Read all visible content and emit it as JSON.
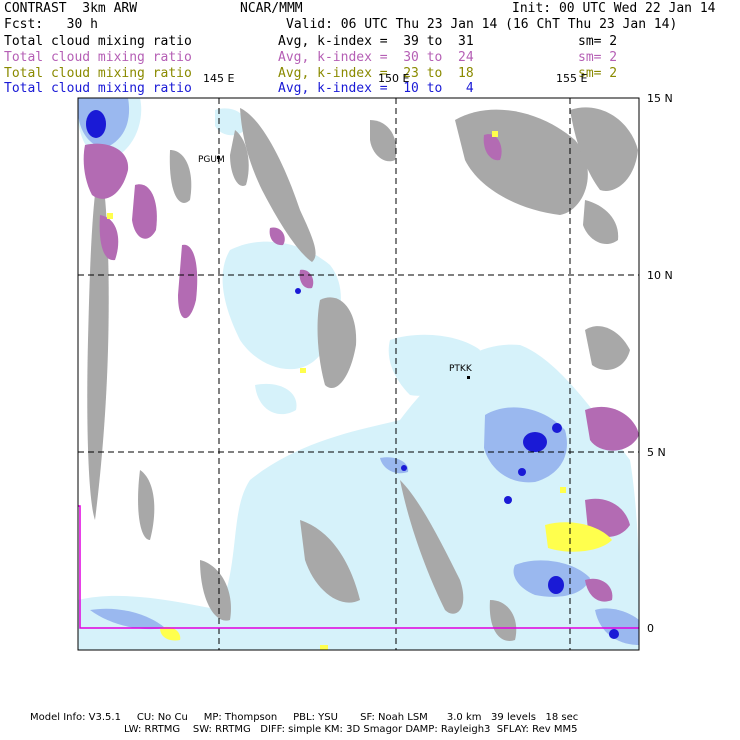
{
  "header": {
    "model": "CONTRAST  3km ARW",
    "org": "NCAR/MMM",
    "init": "Init: 00 UTC Wed 22 Jan 14",
    "fcst": "Fcst:   30 h",
    "valid": "Valid: 06 UTC Thu 23 Jan 14 (16 ChT Thu 23 Jan 14)"
  },
  "legend": [
    {
      "field": "Total cloud mixing ratio",
      "avg": "Avg, k-index =  39 to  31",
      "sm": "sm= 2",
      "color": "#000000"
    },
    {
      "field": "Total cloud mixing ratio",
      "avg": "Avg, k-index =  30 to  24",
      "sm": "sm= 2",
      "color": "#b55fb5"
    },
    {
      "field": "Total cloud mixing ratio",
      "avg": "Avg, k-index =  23 to  18",
      "sm": "sm= 2",
      "color": "#8a8a00"
    },
    {
      "field": "Total cloud mixing ratio",
      "avg": "Avg, k-index =  10 to   4",
      "sm": "",
      "color": "#1a1ad6"
    }
  ],
  "map": {
    "lon_labels": [
      "145 E",
      "150 E",
      "155 E"
    ],
    "lat_labels": [
      "15 N",
      "10 N",
      "5 N",
      "0"
    ],
    "stations": [
      "PGUM",
      "PTKK"
    ],
    "colors": {
      "land": "#a8a8a8",
      "purple_cloud": "#b36bb3",
      "light_blue": "#d6f2fa",
      "mid_blue": "#9ab8ef",
      "dark_blue": "#1a1ad6",
      "yellow": "#ffff4d",
      "boundary": "#e000e0"
    }
  },
  "footer": {
    "line1": "Model Info: V3.5.1     CU: No Cu     MP: Thompson     PBL: YSU       SF: Noah LSM      3.0 km   39 levels   18 sec",
    "line2": "LW: RRTMG    SW: RRTMG   DIFF: simple KM: 3D Smagor DAMP: Rayleigh3  SFLAY: Rev MM5"
  }
}
